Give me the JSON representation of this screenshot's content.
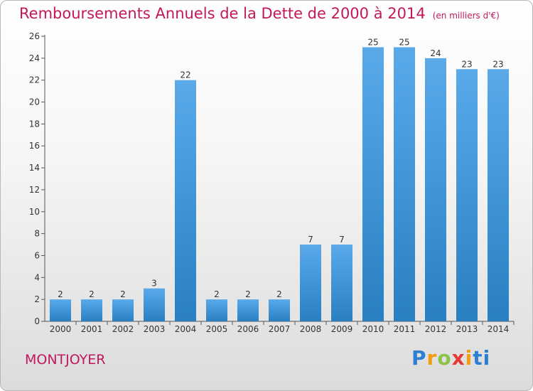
{
  "title": "Remboursements Annuels de la Dette de 2000 à 2014",
  "unit_note": "(en milliers d'€)",
  "commune": "MONTJOYER",
  "logo": {
    "chars": [
      "P",
      "r",
      "o",
      "x",
      "i",
      "ti"
    ]
  },
  "colors": {
    "bar_light": "#5aaaea",
    "bar_dark": "#2a7fc0",
    "title": "#c2185b"
  },
  "chart_data": {
    "type": "bar",
    "categories": [
      "2000",
      "2001",
      "2002",
      "2003",
      "2004",
      "2005",
      "2006",
      "2007",
      "2008",
      "2009",
      "2010",
      "2011",
      "2012",
      "2013",
      "2014"
    ],
    "values": [
      2,
      2,
      2,
      3,
      22,
      2,
      2,
      2,
      7,
      7,
      25,
      25,
      24,
      23,
      23
    ],
    "ylim": [
      0,
      26
    ],
    "yticks": [
      0,
      2,
      4,
      6,
      8,
      10,
      12,
      14,
      16,
      18,
      20,
      22,
      24,
      26
    ],
    "grid": false,
    "data_labels": true
  }
}
